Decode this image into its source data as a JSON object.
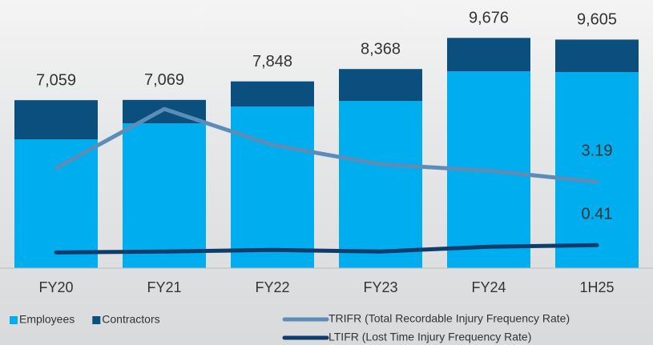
{
  "chart_data": {
    "type": "bar_line",
    "categories": [
      "FY20",
      "FY21",
      "FY22",
      "FY23",
      "FY24",
      "1H25"
    ],
    "series": [
      {
        "name": "Employees",
        "color": "#00aeef",
        "values": [
          5410,
          6083,
          6790,
          7024,
          8270,
          8237
        ]
      },
      {
        "name": "Contractors",
        "color": "#0b4f7e",
        "values": [
          1649,
          986,
          1058,
          1344,
          1406,
          1368
        ]
      },
      {
        "name": "TRIFR (Total Recordable Injury Frequency Rate)",
        "color": "#5b8db8",
        "axis": "y2",
        "values": [
          3.79,
          6.39,
          4.81,
          3.96,
          3.68,
          3.19
        ],
        "value_labels": [
          null,
          null,
          null,
          null,
          null,
          "3.19"
        ]
      },
      {
        "name": "LTIFR (Lost Time Injury Frequency Rate)",
        "color": "#0f3c6a",
        "axis": "y2",
        "values": [
          0.09,
          0.13,
          0.2,
          0.13,
          0.34,
          0.41
        ],
        "value_labels": [
          null,
          null,
          null,
          null,
          null,
          "0.41"
        ]
      }
    ],
    "totals": [
      7059,
      7069,
      7848,
      8368,
      9676,
      9605
    ],
    "total_labels": [
      "7,059",
      "7,069",
      "7,848",
      "8,368",
      "9,676",
      "9,605"
    ],
    "ylim": [
      0,
      11100
    ],
    "y2lim": [
      -0.6,
      11
    ],
    "stacked": true
  }
}
